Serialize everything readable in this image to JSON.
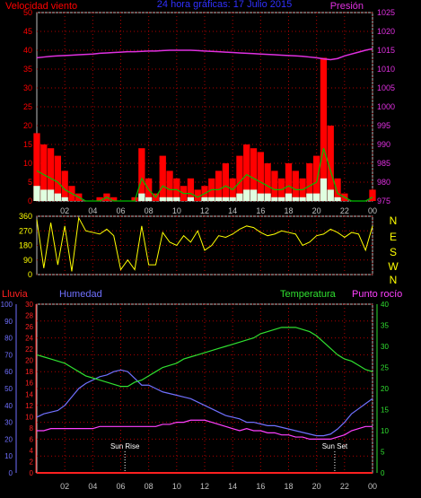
{
  "header": {
    "left_title": "Velocidad viento",
    "center_title": "24 hora gráficas: 17 Julio 2015",
    "right_title": "Presión"
  },
  "colors": {
    "wind": "#ff0000",
    "gust": "#ffffff",
    "avg": "#00c000",
    "pressure": "#e030e0",
    "direction": "#ffff00",
    "rain": "#ff2020",
    "humidity": "#7070ff",
    "temperature": "#30e030",
    "dewpoint": "#ff40ff",
    "grid": "#b00000",
    "frame": "#c0c0c0"
  },
  "chart_data": [
    {
      "type": "area",
      "name": "wind-pressure",
      "title": "24 hora gráficas: 17 Julio 2015",
      "y_left_label": "Velocidad viento",
      "y_right_label": "Presión",
      "x_ticks": [
        "02",
        "04",
        "06",
        "08",
        "10",
        "12",
        "14",
        "16",
        "18",
        "20",
        "22",
        "00"
      ],
      "y_left_ticks": [
        "0",
        "5",
        "10",
        "15",
        "20",
        "25",
        "30",
        "35",
        "40",
        "45",
        "50"
      ],
      "y_left_range": [
        0,
        50
      ],
      "y_right_ticks": [
        "975",
        "980",
        "985",
        "990",
        "995",
        "1000",
        "1005",
        "1010",
        "1015",
        "1020",
        "1025"
      ],
      "y_right_range": [
        975,
        1025
      ],
      "hours": [
        0,
        0.5,
        1,
        1.5,
        2,
        2.5,
        3,
        3.5,
        4,
        4.5,
        5,
        5.5,
        6,
        6.5,
        7,
        7.5,
        8,
        8.5,
        9,
        9.5,
        10,
        10.5,
        11,
        11.5,
        12,
        12.5,
        13,
        13.5,
        14,
        14.5,
        15,
        15.5,
        16,
        16.5,
        17,
        17.5,
        18,
        18.5,
        19,
        19.5,
        20,
        20.5,
        21,
        21.5,
        22,
        22.5,
        23,
        23.5,
        24
      ],
      "series": [
        {
          "name": "wind_gust",
          "values": [
            18,
            15,
            14,
            12,
            8,
            4,
            2,
            0,
            0,
            1,
            2,
            1,
            0,
            0,
            1,
            14,
            6,
            2,
            12,
            8,
            6,
            4,
            6,
            3,
            4,
            6,
            8,
            10,
            6,
            12,
            15,
            14,
            13,
            10,
            8,
            6,
            10,
            8,
            6,
            10,
            12,
            38,
            20,
            6,
            2,
            0,
            0,
            0,
            3
          ]
        },
        {
          "name": "wind_avg",
          "values": [
            8,
            7,
            6,
            5,
            3,
            2,
            1,
            0,
            0,
            0,
            1,
            0,
            0,
            0,
            0,
            6,
            3,
            1,
            4,
            3,
            3,
            2,
            2,
            1,
            2,
            3,
            3,
            4,
            3,
            5,
            7,
            6,
            5,
            4,
            3,
            3,
            4,
            3,
            3,
            4,
            5,
            14,
            8,
            2,
            1,
            0,
            0,
            0,
            1
          ]
        },
        {
          "name": "wind_min",
          "values": [
            4,
            3,
            3,
            2,
            1,
            0,
            0,
            0,
            0,
            0,
            0,
            0,
            0,
            0,
            0,
            2,
            1,
            0,
            1,
            1,
            1,
            0,
            1,
            0,
            1,
            1,
            1,
            1,
            1,
            2,
            3,
            3,
            2,
            2,
            1,
            1,
            2,
            1,
            1,
            2,
            2,
            6,
            3,
            1,
            0,
            0,
            0,
            0,
            0
          ]
        },
        {
          "name": "pressure",
          "values": [
            1013,
            1013.2,
            1013.4,
            1013.5,
            1013.6,
            1013.7,
            1013.8,
            1013.9,
            1014,
            1014.2,
            1014.3,
            1014.4,
            1014.5,
            1014.6,
            1014.6,
            1014.7,
            1014.8,
            1014.8,
            1014.9,
            1015,
            1015,
            1015,
            1015,
            1014.9,
            1014.8,
            1014.7,
            1014.6,
            1014.5,
            1014.4,
            1014.3,
            1014.2,
            1014.1,
            1014,
            1013.9,
            1013.8,
            1013.7,
            1013.6,
            1013.5,
            1013.4,
            1013.2,
            1013,
            1012.7,
            1012.5,
            1012.8,
            1013.5,
            1014,
            1014.5,
            1015,
            1015.4
          ]
        }
      ]
    },
    {
      "type": "line",
      "name": "wind-direction",
      "y_left_ticks": [
        "0",
        "90",
        "180",
        "270",
        "360"
      ],
      "y_range": [
        0,
        360
      ],
      "y_right_ticks": [
        "N",
        "W",
        "S",
        "E",
        "N"
      ],
      "hours": [
        0,
        0.5,
        1,
        1.5,
        2,
        2.5,
        3,
        3.5,
        4,
        4.5,
        5,
        5.5,
        6,
        6.5,
        7,
        7.5,
        8,
        8.5,
        9,
        9.5,
        10,
        10.5,
        11,
        11.5,
        12,
        12.5,
        13,
        13.5,
        14,
        14.5,
        15,
        15.5,
        16,
        16.5,
        17,
        17.5,
        18,
        18.5,
        19,
        19.5,
        20,
        20.5,
        21,
        21.5,
        22,
        22.5,
        23,
        23.5,
        24
      ],
      "values": [
        340,
        40,
        320,
        60,
        300,
        20,
        350,
        270,
        260,
        250,
        280,
        240,
        30,
        90,
        30,
        300,
        60,
        60,
        260,
        200,
        180,
        240,
        200,
        270,
        150,
        180,
        240,
        230,
        250,
        280,
        300,
        290,
        260,
        240,
        250,
        270,
        260,
        250,
        180,
        200,
        240,
        250,
        280,
        260,
        230,
        260,
        250,
        150,
        300
      ]
    },
    {
      "type": "line",
      "name": "rain-humidity-temperature-dewpoint",
      "labels": {
        "rain": "Lluvia",
        "humidity": "Humedad",
        "temperature": "Temperatura",
        "dewpoint": "Punto rocío"
      },
      "x_ticks": [
        "02",
        "04",
        "06",
        "08",
        "10",
        "12",
        "14",
        "16",
        "18",
        "20",
        "22",
        "00"
      ],
      "humidity_ticks": [
        "0",
        "10",
        "20",
        "30",
        "40",
        "50",
        "60",
        "70",
        "80",
        "90",
        "100"
      ],
      "humidity_range": [
        0,
        100
      ],
      "rain_ticks": [
        "0",
        "2",
        "4",
        "6",
        "8",
        "10",
        "12",
        "14",
        "16",
        "18",
        "20",
        "22",
        "24",
        "26",
        "28",
        "30"
      ],
      "rain_range": [
        0,
        30
      ],
      "temp_ticks": [
        "0",
        "5",
        "10",
        "15",
        "20",
        "25",
        "30",
        "35",
        "40"
      ],
      "temp_range": [
        0,
        40
      ],
      "annotations": [
        {
          "label": "Sun Rise",
          "hour": 6.3
        },
        {
          "label": "Sun Set",
          "hour": 21.3
        }
      ],
      "hours": [
        0,
        0.5,
        1,
        1.5,
        2,
        2.5,
        3,
        3.5,
        4,
        4.5,
        5,
        5.5,
        6,
        6.5,
        7,
        7.5,
        8,
        8.5,
        9,
        9.5,
        10,
        10.5,
        11,
        11.5,
        12,
        12.5,
        13,
        13.5,
        14,
        14.5,
        15,
        15.5,
        16,
        16.5,
        17,
        17.5,
        18,
        18.5,
        19,
        19.5,
        20,
        20.5,
        21,
        21.5,
        22,
        22.5,
        23,
        23.5,
        24
      ],
      "series": [
        {
          "name": "humidity",
          "values": [
            33,
            35,
            36,
            37,
            40,
            45,
            50,
            53,
            55,
            57,
            58,
            60,
            61,
            60,
            56,
            52,
            52,
            50,
            48,
            47,
            46,
            45,
            44,
            42,
            40,
            38,
            36,
            34,
            33,
            32,
            30,
            30,
            29,
            28,
            28,
            27,
            26,
            25,
            24,
            23,
            22,
            22,
            23,
            26,
            30,
            35,
            38,
            41,
            44
          ]
        },
        {
          "name": "rain",
          "values": [
            0,
            0,
            0,
            0,
            0,
            0,
            0,
            0,
            0,
            0,
            0,
            0,
            0,
            0,
            0,
            0,
            0,
            0,
            0,
            0,
            0,
            0,
            0,
            0,
            0,
            0,
            0,
            0,
            0,
            0,
            0,
            0,
            0,
            0,
            0,
            0,
            0,
            0,
            0,
            0,
            0,
            0,
            0,
            0,
            0,
            0,
            0,
            0,
            0
          ]
        },
        {
          "name": "temperature",
          "values": [
            28,
            27.5,
            27,
            26.5,
            26,
            25,
            24,
            23,
            22.5,
            22,
            21.5,
            21,
            20.5,
            20.5,
            21.5,
            22,
            23,
            24,
            25,
            25.5,
            26,
            27,
            27.5,
            28,
            28.5,
            29,
            29.5,
            30,
            30.5,
            31,
            31.5,
            32,
            33,
            33.5,
            34,
            34.5,
            34.5,
            34.5,
            34,
            33.5,
            32.5,
            31,
            29.5,
            28,
            27,
            26.5,
            25.5,
            24.5,
            24
          ]
        },
        {
          "name": "dewpoint",
          "values": [
            10,
            10,
            10.5,
            10.5,
            10.5,
            10.5,
            10.5,
            10.5,
            10.5,
            11,
            11,
            11,
            11,
            11,
            11,
            11,
            11,
            11,
            11.5,
            11.5,
            12,
            12,
            12.5,
            12.5,
            12.5,
            12,
            11.5,
            11,
            10.5,
            10,
            10.5,
            10,
            10,
            9.5,
            9.5,
            9,
            9,
            8.5,
            8.5,
            8,
            8,
            8,
            8,
            8.5,
            9,
            10,
            10.5,
            11,
            11
          ]
        }
      ]
    }
  ]
}
